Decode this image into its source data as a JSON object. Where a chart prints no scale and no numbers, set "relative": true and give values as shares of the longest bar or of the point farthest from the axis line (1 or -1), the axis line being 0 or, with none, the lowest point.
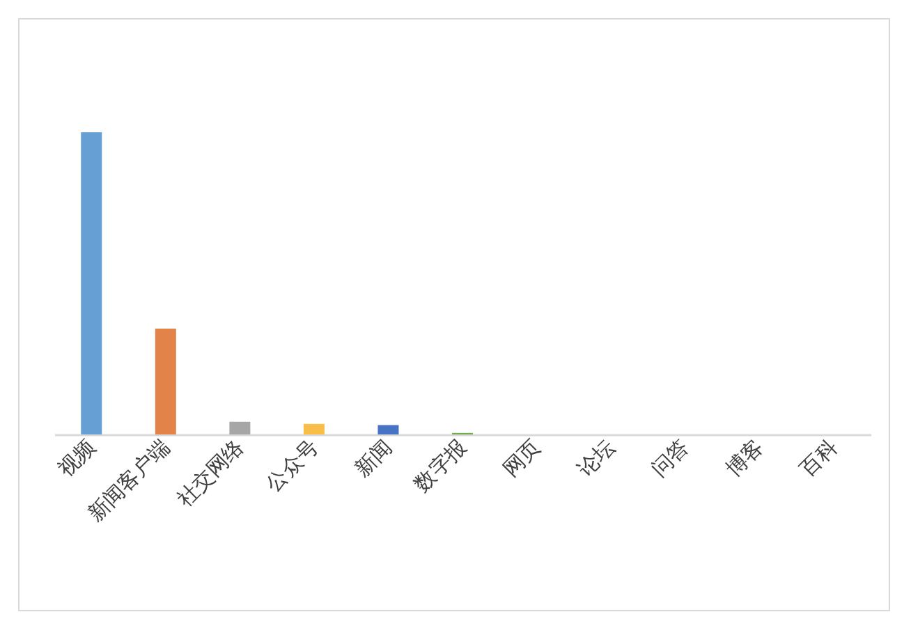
{
  "chart_data": {
    "type": "bar",
    "relative": true,
    "categories": [
      "视频",
      "新闻客户端",
      "社交网络",
      "公众号",
      "新闻",
      "数字报",
      "网页",
      "论坛",
      "问答",
      "博客",
      "百科"
    ],
    "values": [
      1,
      0.35,
      0.042,
      0.035,
      0.031,
      0.005,
      0,
      0,
      0,
      0,
      0
    ],
    "colors": [
      "#659fd4",
      "#e2834a",
      "#a6a6a6",
      "#f9be49",
      "#4673c4",
      "#72ac4d",
      "#255e91",
      "#9e480e",
      "#636363",
      "#997300",
      "#264478"
    ]
  }
}
